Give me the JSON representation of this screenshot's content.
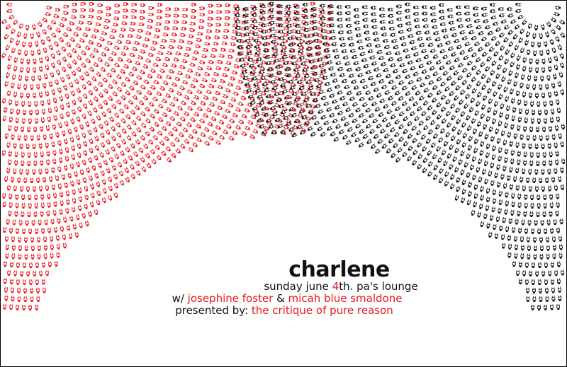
{
  "poster": {
    "title": "charlene",
    "date_prefix": "sunday june ",
    "date_num": "4",
    "date_suffix": "th. pa's lounge",
    "with_prefix": "w/ ",
    "artist_1": "josephine foster",
    "amp": " & ",
    "artist_2": "micah blue smaldone",
    "presented_prefix": "presented by: ",
    "presenter": "the critique of pure reason"
  },
  "colors": {
    "red": "#e8161d",
    "black": "#111111"
  },
  "artwork": {
    "left_figures_icon": "red-robot-figure-icon",
    "right_figures_icon": "black-robot-figure-icon"
  }
}
